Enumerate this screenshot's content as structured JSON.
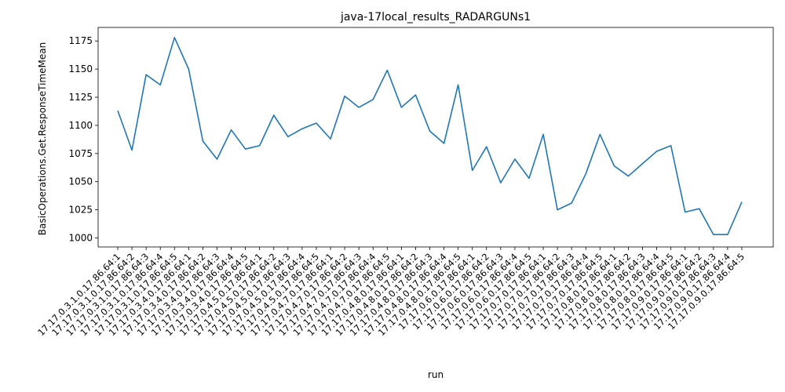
{
  "chart_data": {
    "type": "line",
    "title": "java-17local_results_RADARGUNs1",
    "xlabel": "run",
    "ylabel": "BasicOperations.Get.ResponseTimeMean",
    "ylim": [
      992,
      1187
    ],
    "yticks": [
      1000,
      1025,
      1050,
      1075,
      1100,
      1125,
      1150,
      1175
    ],
    "grid": false,
    "line_color": "#1f77b4",
    "categories": [
      "17.17.0.3.1.0.17.86.64:1",
      "17.17.0.3.1.0.17.86.64:2",
      "17.17.0.3.1.0.17.86.64:3",
      "17.17.0.3.1.0.17.86.64:4",
      "17.17.0.3.1.0.17.86.64:5",
      "17.17.0.3.4.0.17.86.64:1",
      "17.17.0.3.4.0.17.86.64:2",
      "17.17.0.3.4.0.17.86.64:3",
      "17.17.0.3.4.0.17.86.64:4",
      "17.17.0.3.4.0.17.86.64:5",
      "17.17.0.4.5.0.17.86.64:1",
      "17.17.0.4.5.0.17.86.64:2",
      "17.17.0.4.5.0.17.86.64:3",
      "17.17.0.4.5.0.17.86.64:4",
      "17.17.0.4.5.0.17.86.64:5",
      "17.17.0.4.7.0.17.86.64:1",
      "17.17.0.4.7.0.17.86.64:2",
      "17.17.0.4.7.0.17.86.64:3",
      "17.17.0.4.7.0.17.86.64:4",
      "17.17.0.4.7.0.17.86.64:5",
      "17.17.0.4.8.0.17.86.64:1",
      "17.17.0.4.8.0.17.86.64:2",
      "17.17.0.4.8.0.17.86.64:3",
      "17.17.0.4.8.0.17.86.64:4",
      "17.17.0.4.8.0.17.86.64:5",
      "17.17.0.6.0.17.86.64:1",
      "17.17.0.6.0.17.86.64:2",
      "17.17.0.6.0.17.86.64:3",
      "17.17.0.6.0.17.86.64:4",
      "17.17.0.6.0.17.86.64:5",
      "17.17.0.7.0.17.86.64:1",
      "17.17.0.7.0.17.86.64:2",
      "17.17.0.7.0.17.86.64:3",
      "17.17.0.7.0.17.86.64:4",
      "17.17.0.7.0.17.86.64:5",
      "17.17.0.8.0.17.86.64:1",
      "17.17.0.8.0.17.86.64:2",
      "17.17.0.8.0.17.86.64:3",
      "17.17.0.8.0.17.86.64:4",
      "17.17.0.8.0.17.86.64:5",
      "17.17.0.9.0.17.86.64:1",
      "17.17.0.9.0.17.86.64:2",
      "17.17.0.9.0.17.86.64:3",
      "17.17.0.9.0.17.86.64:4",
      "17.17.0.9.0.17.86.64:5"
    ],
    "values": [
      1113,
      1078,
      1145,
      1136,
      1178,
      1150,
      1086,
      1070,
      1096,
      1079,
      1082,
      1109,
      1090,
      1097,
      1102,
      1088,
      1126,
      1116,
      1123,
      1149,
      1116,
      1127,
      1095,
      1084,
      1136,
      1060,
      1081,
      1049,
      1070,
      1053,
      1092,
      1025,
      1031,
      1057,
      1092,
      1064,
      1055,
      1066,
      1077,
      1082,
      1023,
      1026,
      1003,
      1003,
      1032
    ]
  }
}
